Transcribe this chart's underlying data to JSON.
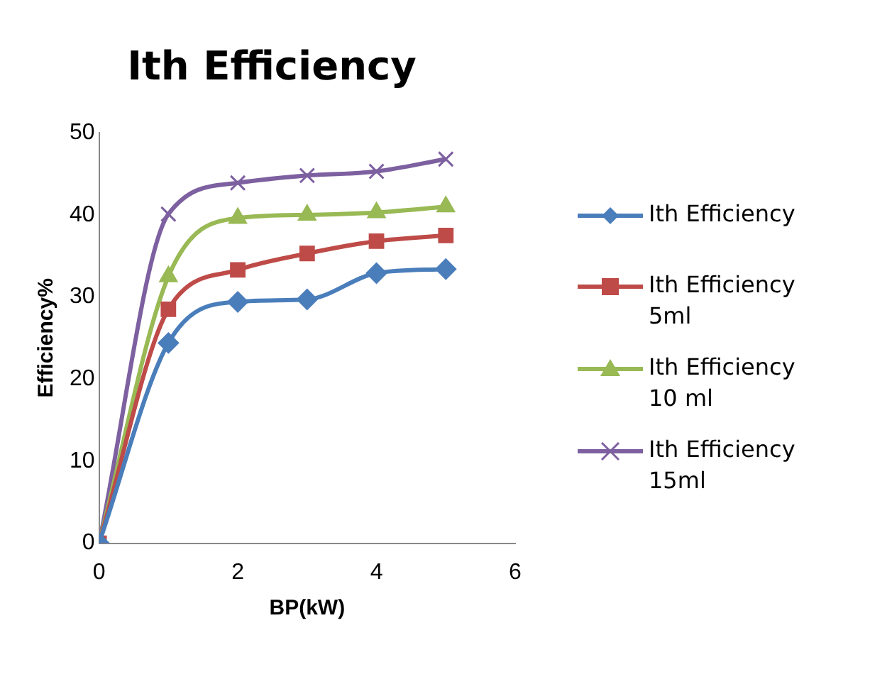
{
  "chart_data": {
    "type": "line",
    "title": "Ith Efficiency",
    "xlabel": "BP(kW)",
    "ylabel": "Efficiency%",
    "x": [
      0,
      1,
      2,
      3,
      4,
      5
    ],
    "xlim": [
      0,
      6
    ],
    "xticks": [
      0,
      2,
      4,
      6
    ],
    "ylim": [
      0,
      50
    ],
    "yticks": [
      0,
      10,
      20,
      30,
      40,
      50
    ],
    "grid": false,
    "legend": "right",
    "series": [
      {
        "name": "Ith Efficiency",
        "color": "#4a7ebb",
        "marker": "diamond",
        "values": [
          0,
          24.4,
          29.4,
          29.7,
          32.9,
          33.4
        ]
      },
      {
        "name": "Ith Efficiency 5ml",
        "color": "#be4b48",
        "marker": "square",
        "values": [
          0,
          28.5,
          33.3,
          35.3,
          36.8,
          37.5
        ]
      },
      {
        "name": "Ith Efficiency 10 ml",
        "color": "#98b954",
        "marker": "triangle",
        "values": [
          0,
          32.5,
          39.6,
          40,
          40.3,
          41
        ]
      },
      {
        "name": "Ith Efficiency 15ml",
        "color": "#7d60a0",
        "marker": "cross",
        "values": [
          0,
          40.1,
          43.9,
          44.8,
          45.3,
          46.8
        ]
      }
    ]
  }
}
